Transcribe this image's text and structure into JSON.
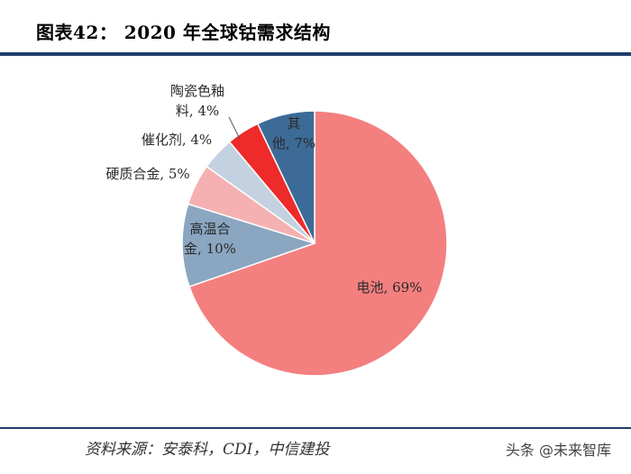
{
  "header": {
    "title": "图表42：  2020 年全球钴需求结构"
  },
  "footer": {
    "source": "资料来源：安泰科，CDI，中信建投",
    "watermark": "头条 @未来智库"
  },
  "chart_data": {
    "type": "pie",
    "title": "2020 年全球钴需求结构",
    "start_angle_deg": 0,
    "direction": "clockwise",
    "slices": [
      {
        "name": "电池",
        "label": [
          "电池, 69%"
        ],
        "value": 69,
        "color": "#f47f7f"
      },
      {
        "name": "高温合金",
        "label": [
          "高温合",
          "金, 10%"
        ],
        "value": 10,
        "color": "#8aa6c1"
      },
      {
        "name": "硬质合金",
        "label": [
          "硬质合金, 5%"
        ],
        "value": 5,
        "color": "#f5b1b1"
      },
      {
        "name": "催化剂",
        "label": [
          "催化剂, 4%"
        ],
        "value": 4,
        "color": "#c3d1e0"
      },
      {
        "name": "陶瓷色釉料",
        "label": [
          "陶瓷色釉",
          "料, 4%"
        ],
        "value": 4,
        "color": "#ee2a2a"
      },
      {
        "name": "其他",
        "label": [
          "其",
          "他, 7%"
        ],
        "value": 7,
        "color": "#3d6b97"
      }
    ]
  }
}
